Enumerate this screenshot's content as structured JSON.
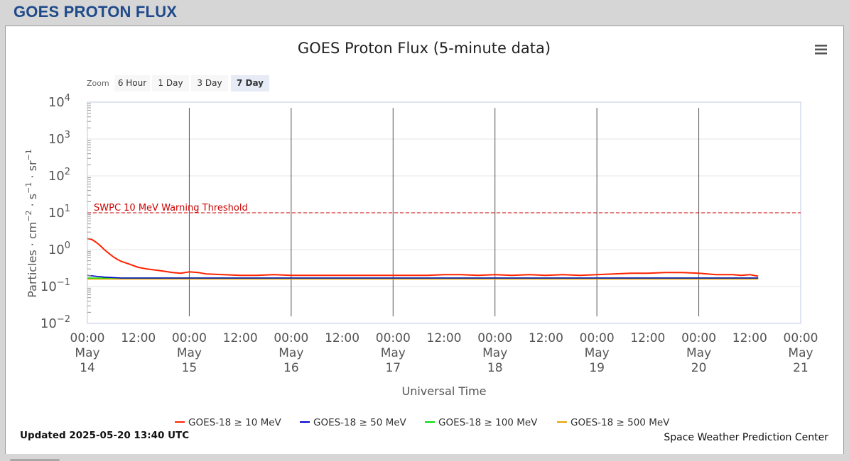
{
  "page": {
    "header_title": "GOES PROTON FLUX"
  },
  "chart_data": {
    "type": "line",
    "title": "GOES Proton Flux (5-minute data)",
    "xlabel": "Universal Time",
    "ylabel_parts": [
      "Particles · cm",
      "−2",
      " · s",
      "−1",
      " · sr",
      "−1"
    ],
    "y_scale": "log",
    "ylim": [
      0.01,
      10000
    ],
    "y_ticks": [
      {
        "value": 10000,
        "base": "10",
        "exp": "4"
      },
      {
        "value": 1000,
        "base": "10",
        "exp": "3"
      },
      {
        "value": 100,
        "base": "10",
        "exp": "2"
      },
      {
        "value": 10,
        "base": "10",
        "exp": "1"
      },
      {
        "value": 1,
        "base": "10",
        "exp": "0"
      },
      {
        "value": 0.1,
        "base": "10",
        "exp": "-1"
      },
      {
        "value": 0.01,
        "base": "10",
        "exp": "-2"
      }
    ],
    "x_range_hours": [
      0,
      168
    ],
    "x_ticks": [
      {
        "hour": 0,
        "lines": [
          "00:00",
          "May",
          "14"
        ]
      },
      {
        "hour": 12,
        "lines": [
          "12:00"
        ]
      },
      {
        "hour": 24,
        "lines": [
          "00:00",
          "May",
          "15"
        ]
      },
      {
        "hour": 36,
        "lines": [
          "12:00"
        ]
      },
      {
        "hour": 48,
        "lines": [
          "00:00",
          "May",
          "16"
        ]
      },
      {
        "hour": 60,
        "lines": [
          "12:00"
        ]
      },
      {
        "hour": 72,
        "lines": [
          "00:00",
          "May",
          "17"
        ]
      },
      {
        "hour": 84,
        "lines": [
          "12:00"
        ]
      },
      {
        "hour": 96,
        "lines": [
          "00:00",
          "May",
          "18"
        ]
      },
      {
        "hour": 108,
        "lines": [
          "12:00"
        ]
      },
      {
        "hour": 120,
        "lines": [
          "00:00",
          "May",
          "19"
        ]
      },
      {
        "hour": 132,
        "lines": [
          "12:00"
        ]
      },
      {
        "hour": 144,
        "lines": [
          "00:00",
          "May",
          "20"
        ]
      },
      {
        "hour": 156,
        "lines": [
          "12:00"
        ]
      },
      {
        "hour": 168,
        "lines": [
          "00:00",
          "May",
          "21"
        ]
      }
    ],
    "day_lines_hours": [
      24,
      48,
      72,
      96,
      120,
      144
    ],
    "threshold": {
      "value": 10,
      "label": "SWPC 10 MeV Warning Threshold",
      "color": "#cc0000"
    },
    "series": [
      {
        "name": "GOES-18 ≥ 10 MeV",
        "color": "#ff2200",
        "points": [
          [
            0,
            2.0
          ],
          [
            1,
            1.9
          ],
          [
            2,
            1.6
          ],
          [
            3,
            1.3
          ],
          [
            4,
            1.0
          ],
          [
            5,
            0.8
          ],
          [
            6,
            0.65
          ],
          [
            7,
            0.55
          ],
          [
            8,
            0.48
          ],
          [
            10,
            0.4
          ],
          [
            12,
            0.33
          ],
          [
            14,
            0.3
          ],
          [
            16,
            0.28
          ],
          [
            18,
            0.26
          ],
          [
            20,
            0.24
          ],
          [
            22,
            0.23
          ],
          [
            24,
            0.25
          ],
          [
            26,
            0.24
          ],
          [
            28,
            0.22
          ],
          [
            32,
            0.21
          ],
          [
            36,
            0.2
          ],
          [
            40,
            0.2
          ],
          [
            44,
            0.21
          ],
          [
            48,
            0.2
          ],
          [
            52,
            0.2
          ],
          [
            56,
            0.2
          ],
          [
            60,
            0.2
          ],
          [
            64,
            0.2
          ],
          [
            68,
            0.2
          ],
          [
            72,
            0.2
          ],
          [
            76,
            0.2
          ],
          [
            80,
            0.2
          ],
          [
            84,
            0.21
          ],
          [
            88,
            0.21
          ],
          [
            92,
            0.2
          ],
          [
            96,
            0.21
          ],
          [
            100,
            0.2
          ],
          [
            104,
            0.21
          ],
          [
            108,
            0.2
          ],
          [
            112,
            0.21
          ],
          [
            116,
            0.2
          ],
          [
            120,
            0.21
          ],
          [
            124,
            0.22
          ],
          [
            128,
            0.23
          ],
          [
            132,
            0.23
          ],
          [
            136,
            0.24
          ],
          [
            140,
            0.24
          ],
          [
            144,
            0.23
          ],
          [
            146,
            0.22
          ],
          [
            148,
            0.21
          ],
          [
            150,
            0.21
          ],
          [
            152,
            0.21
          ],
          [
            154,
            0.2
          ],
          [
            156,
            0.21
          ],
          [
            158,
            0.19
          ]
        ]
      },
      {
        "name": "GOES-18 ≥ 50 MeV",
        "color": "#0000cc",
        "points": [
          [
            0,
            0.2
          ],
          [
            2,
            0.19
          ],
          [
            4,
            0.18
          ],
          [
            8,
            0.17
          ],
          [
            12,
            0.17
          ],
          [
            20,
            0.17
          ],
          [
            28,
            0.17
          ],
          [
            40,
            0.17
          ],
          [
            60,
            0.17
          ],
          [
            80,
            0.17
          ],
          [
            100,
            0.17
          ],
          [
            120,
            0.17
          ],
          [
            140,
            0.17
          ],
          [
            158,
            0.17
          ]
        ]
      },
      {
        "name": "GOES-18 ≥ 100 MeV",
        "color": "#00dd00",
        "points": [
          [
            0,
            0.17
          ],
          [
            8,
            0.17
          ],
          [
            16,
            0.17
          ],
          [
            24,
            0.17
          ],
          [
            40,
            0.17
          ],
          [
            60,
            0.17
          ],
          [
            80,
            0.17
          ],
          [
            100,
            0.17
          ],
          [
            120,
            0.17
          ],
          [
            140,
            0.17
          ],
          [
            158,
            0.17
          ]
        ]
      },
      {
        "name": "GOES-18 ≥ 500 MeV",
        "color": "#e8a000",
        "points": [
          [
            0,
            0.16
          ],
          [
            8,
            0.16
          ],
          [
            16,
            0.16
          ],
          [
            24,
            0.16
          ],
          [
            40,
            0.16
          ],
          [
            60,
            0.16
          ],
          [
            80,
            0.16
          ],
          [
            100,
            0.16
          ],
          [
            120,
            0.16
          ],
          [
            140,
            0.16
          ],
          [
            158,
            0.16
          ]
        ]
      }
    ],
    "legend_position": "bottom"
  },
  "zoom": {
    "label": "Zoom",
    "buttons": [
      "6 Hour",
      "1 Day",
      "3 Day",
      "7 Day"
    ],
    "active": "7 Day"
  },
  "footer": {
    "updated": "Updated 2025-05-20 13:40 UTC",
    "credit": "Space Weather Prediction Center"
  },
  "colors": {
    "header_title": "#1f4a8a",
    "grid": "#e6e6e6",
    "plot_border": "#c0c8e0"
  }
}
